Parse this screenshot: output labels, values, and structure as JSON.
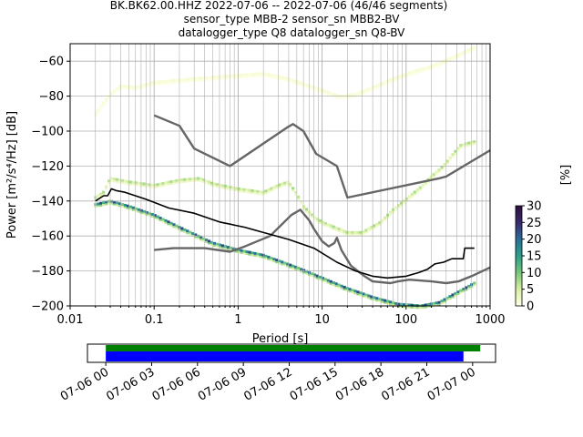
{
  "figure": {
    "title_lines": [
      "BK.BK62.00.HHZ   2022-07-06 -- 2022-07-06  (46/46 segments)",
      "sensor_type MBB-2 sensor_sn MBB2-BV",
      "datalogger_type Q8 datalogger_sn Q8-BV"
    ]
  },
  "chart_data": [
    {
      "type": "heatmap",
      "subtype": "probabilistic-power-spectral-density",
      "xlabel": "Period [s]",
      "ylabel": "Power [m²/s⁴/Hz] [dB]",
      "xscale": "log",
      "xlim": [
        0.01,
        1000
      ],
      "ylim": [
        -200,
        -50
      ],
      "grid": true,
      "xticks": [
        {
          "value": 0.01,
          "label": "0.01"
        },
        {
          "value": 0.1,
          "label": "0.1"
        },
        {
          "value": 1,
          "label": "1"
        },
        {
          "value": 10,
          "label": "10"
        },
        {
          "value": 100,
          "label": "100"
        },
        {
          "value": 1000,
          "label": "1000"
        }
      ],
      "yticks": [
        {
          "value": -60,
          "label": "−60"
        },
        {
          "value": -80,
          "label": "−80"
        },
        {
          "value": -100,
          "label": "−100"
        },
        {
          "value": -120,
          "label": "−120"
        },
        {
          "value": -140,
          "label": "−140"
        },
        {
          "value": -160,
          "label": "−160"
        },
        {
          "value": -180,
          "label": "−180"
        },
        {
          "value": -200,
          "label": "−200"
        }
      ],
      "colorbar": {
        "label": "[%]",
        "range": [
          0,
          30
        ],
        "ticks": [
          {
            "value": 0,
            "label": "0"
          },
          {
            "value": 5,
            "label": "5"
          },
          {
            "value": 10,
            "label": "10"
          },
          {
            "value": 15,
            "label": "15"
          },
          {
            "value": 20,
            "label": "20"
          },
          {
            "value": 25,
            "label": "25"
          },
          {
            "value": 30,
            "label": "30"
          }
        ],
        "colormap": [
          "#ffffe5",
          "#d9f0a3",
          "#78c679",
          "#2ca089",
          "#2b6e99",
          "#3b2a6e",
          "#2d0f3e"
        ]
      },
      "series": [
        {
          "role": "reference-high",
          "color": "#666666",
          "points": [
            [
              0.1,
              -91
            ],
            [
              0.2,
              -97
            ],
            [
              0.3,
              -110
            ],
            [
              0.8,
              -120
            ],
            [
              3.8,
              -98
            ],
            [
              4.5,
              -96
            ],
            [
              6,
              -100
            ],
            [
              8.5,
              -113
            ],
            [
              15,
              -120
            ],
            [
              20,
              -138
            ],
            [
              250,
              -127
            ],
            [
              300,
              -126
            ],
            [
              1000,
              -111
            ]
          ]
        },
        {
          "role": "reference-low",
          "color": "#666666",
          "points": [
            [
              0.1,
              -168
            ],
            [
              0.17,
              -167
            ],
            [
              0.4,
              -167
            ],
            [
              0.8,
              -169
            ],
            [
              1.2,
              -166
            ],
            [
              2.4,
              -160
            ],
            [
              4.3,
              -148
            ],
            [
              5.5,
              -145
            ],
            [
              7,
              -151
            ],
            [
              8,
              -156
            ],
            [
              10,
              -163
            ],
            [
              12,
              -166
            ],
            [
              14,
              -164
            ],
            [
              15,
              -161
            ],
            [
              17,
              -168
            ],
            [
              22,
              -177
            ],
            [
              32,
              -183
            ],
            [
              40,
              -186
            ],
            [
              65,
              -187
            ],
            [
              80,
              -186
            ],
            [
              110,
              -185
            ],
            [
              200,
              -186
            ],
            [
              300,
              -187
            ],
            [
              420,
              -186
            ],
            [
              600,
              -183
            ],
            [
              1000,
              -178
            ]
          ]
        },
        {
          "role": "mode",
          "color": "#000000",
          "points": [
            [
              0.02,
              -140
            ],
            [
              0.025,
              -137
            ],
            [
              0.028,
              -137
            ],
            [
              0.031,
              -133
            ],
            [
              0.035,
              -134
            ],
            [
              0.045,
              -135
            ],
            [
              0.08,
              -139
            ],
            [
              0.15,
              -144
            ],
            [
              0.3,
              -147
            ],
            [
              0.6,
              -152
            ],
            [
              1.2,
              -155
            ],
            [
              2,
              -158
            ],
            [
              4,
              -162
            ],
            [
              8,
              -167
            ],
            [
              15,
              -175
            ],
            [
              25,
              -180
            ],
            [
              40,
              -183
            ],
            [
              60,
              -184
            ],
            [
              100,
              -183
            ],
            [
              140,
              -181
            ],
            [
              180,
              -179
            ],
            [
              220,
              -176
            ],
            [
              280,
              -175
            ],
            [
              350,
              -173
            ],
            [
              480,
              -173
            ],
            [
              500,
              -167
            ],
            [
              650,
              -167
            ]
          ]
        }
      ],
      "density_bands": [
        {
          "label": "microseism / noise lower branch",
          "points": [
            [
              0.02,
              -142
            ],
            [
              0.025,
              -141
            ],
            [
              0.03,
              -140
            ],
            [
              0.05,
              -143
            ],
            [
              0.1,
              -148
            ],
            [
              0.2,
              -155
            ],
            [
              0.5,
              -164
            ],
            [
              1,
              -168
            ],
            [
              2,
              -171
            ],
            [
              5,
              -178
            ],
            [
              10,
              -184
            ],
            [
              20,
              -190
            ],
            [
              40,
              -195
            ],
            [
              80,
              -199
            ],
            [
              150,
              -200
            ],
            [
              250,
              -198
            ],
            [
              350,
              -194
            ],
            [
              500,
              -190
            ],
            [
              650,
              -187
            ]
          ],
          "level_pct": 18
        },
        {
          "label": "upper curve",
          "points": [
            [
              0.02,
              -138
            ],
            [
              0.025,
              -135
            ],
            [
              0.03,
              -127
            ],
            [
              0.05,
              -129
            ],
            [
              0.1,
              -131
            ],
            [
              0.2,
              -128
            ],
            [
              0.35,
              -127
            ],
            [
              0.5,
              -130
            ],
            [
              1,
              -133
            ],
            [
              2,
              -135
            ],
            [
              3,
              -131
            ],
            [
              4,
              -129
            ],
            [
              5,
              -136
            ],
            [
              6,
              -143
            ],
            [
              8,
              -149
            ],
            [
              10,
              -152
            ],
            [
              20,
              -158
            ],
            [
              30,
              -158
            ],
            [
              50,
              -152
            ],
            [
              70,
              -145
            ],
            [
              100,
              -139
            ],
            [
              150,
              -132
            ],
            [
              200,
              -126
            ],
            [
              250,
              -122
            ],
            [
              300,
              -118
            ],
            [
              350,
              -114
            ],
            [
              450,
              -108
            ],
            [
              650,
              -106
            ]
          ],
          "level_pct": 6
        },
        {
          "label": "upper diffuse curve",
          "points": [
            [
              0.02,
              -90
            ],
            [
              0.03,
              -79
            ],
            [
              0.04,
              -74
            ],
            [
              0.06,
              -75
            ],
            [
              0.1,
              -72
            ],
            [
              0.3,
              -70
            ],
            [
              1,
              -68
            ],
            [
              2,
              -67
            ],
            [
              4,
              -70
            ],
            [
              8,
              -75
            ],
            [
              16,
              -80
            ],
            [
              25,
              -79
            ],
            [
              40,
              -75
            ],
            [
              70,
              -70
            ],
            [
              120,
              -66
            ],
            [
              200,
              -63
            ],
            [
              350,
              -58
            ],
            [
              650,
              -52
            ]
          ],
          "level_pct": 1
        }
      ]
    },
    {
      "type": "bar",
      "subtype": "data-availability-timeline",
      "xticks": [
        {
          "label": "07-06 00"
        },
        {
          "label": "07-06 03"
        },
        {
          "label": "07-06 06"
        },
        {
          "label": "07-06 09"
        },
        {
          "label": "07-06 12"
        },
        {
          "label": "07-06 15"
        },
        {
          "label": "07-06 18"
        },
        {
          "label": "07-06 21"
        },
        {
          "label": "07-07 00"
        }
      ],
      "xrange_hours": [
        -1.2,
        25.5
      ],
      "bars": [
        {
          "role": "available-data",
          "color": "#008000",
          "start_hour": 0,
          "end_hour": 24.5
        },
        {
          "role": "used-segments",
          "color": "#0000ff",
          "start_hour": 0,
          "end_hour": 23.4
        }
      ]
    }
  ]
}
